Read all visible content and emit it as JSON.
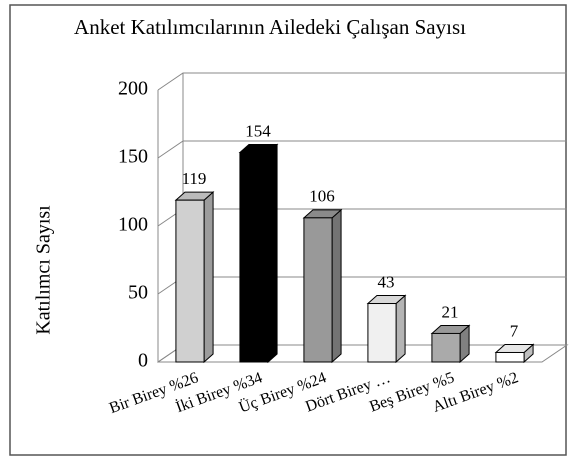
{
  "chart_data": {
    "type": "bar3d",
    "title": "Anket Katılımcılarının Ailedeki Çalışan Sayısı",
    "y_label": "Katılımcı Sayısı",
    "categories": [
      "Bir Birey %26",
      "İki Birey %34",
      "Üç Birey %24",
      "Dört Birey …",
      "Beş Birey %5",
      "Altı Birey %2"
    ],
    "values": [
      119,
      154,
      106,
      43,
      21,
      7
    ],
    "colors": [
      "#d0d0d0",
      "#000000",
      "#999999",
      "#f0f0f0",
      "#aaaaaa",
      "#ffffff"
    ],
    "ylim": [
      0,
      200
    ],
    "yticks": [
      0,
      50,
      100,
      150,
      200
    ],
    "grid": true
  }
}
